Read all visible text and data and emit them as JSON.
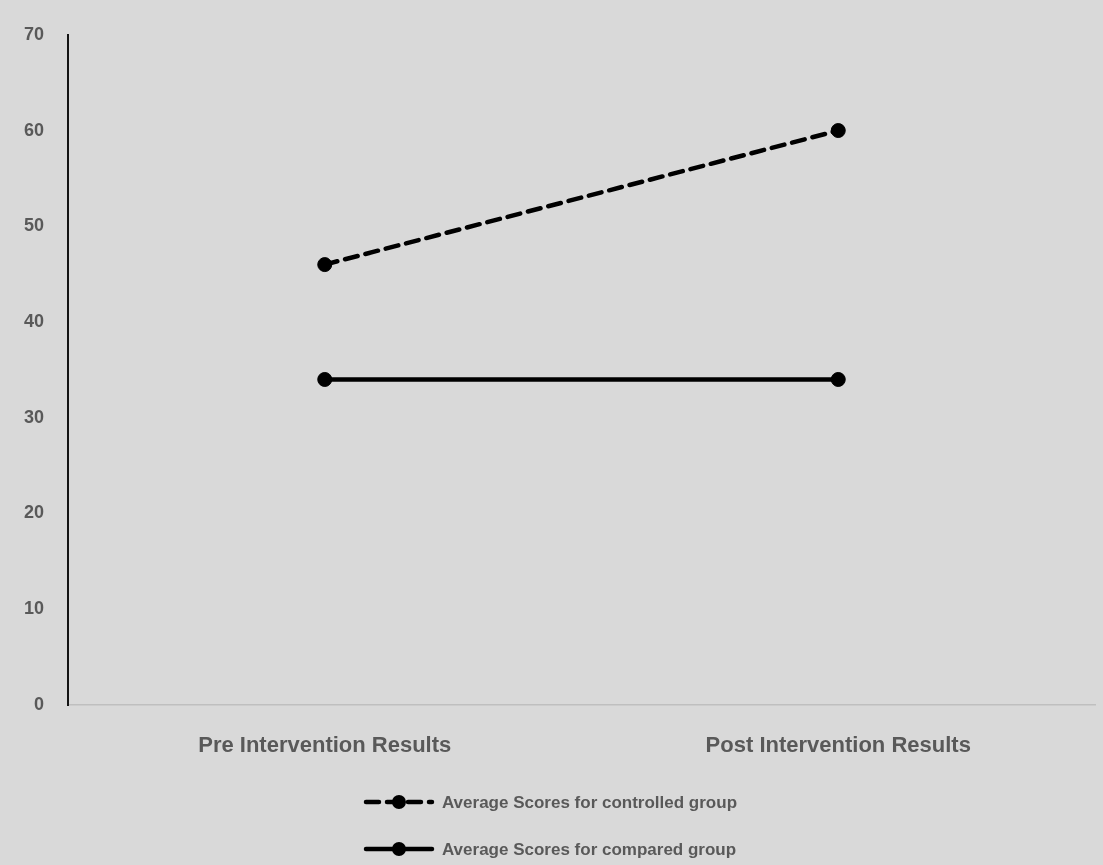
{
  "chart_data": {
    "type": "line",
    "categories": [
      "Pre Intervention Results",
      "Post Intervention Results"
    ],
    "series": [
      {
        "name": "Average Scores for controlled group",
        "color": "#000000",
        "values": [
          46,
          60
        ],
        "line_style": "dashed"
      },
      {
        "name": "Average Scores for compared group",
        "color": "#000000",
        "values": [
          34,
          34
        ],
        "line_style": "solid"
      }
    ],
    "ylim": [
      0,
      70
    ],
    "yticks": [
      0,
      10,
      20,
      30,
      40,
      50,
      60,
      70
    ],
    "grid": false,
    "legend": "bottom",
    "marker": "circle"
  }
}
